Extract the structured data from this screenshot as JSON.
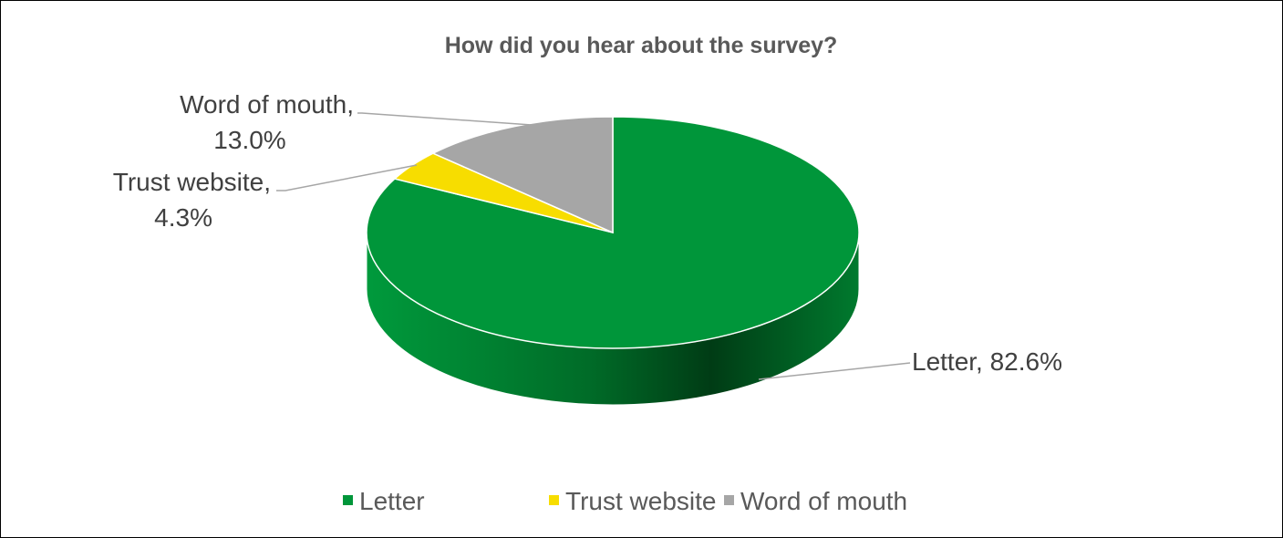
{
  "chart_data": {
    "type": "pie",
    "title": "How did you hear about the survey?",
    "categories": [
      "Letter",
      "Trust website",
      "Word of mouth"
    ],
    "values": [
      82.6,
      4.3,
      13.0
    ],
    "value_unit": "%",
    "data_labels": [
      {
        "category": "Letter",
        "value": "82.6%"
      },
      {
        "category": "Trust website",
        "value": "4.3%"
      },
      {
        "category": "Word of mouth",
        "value": "13.0%"
      }
    ],
    "colors": [
      "#00963a",
      "#f7dd00",
      "#a6a6a6"
    ],
    "side_color": "#007a2e",
    "style": "3d",
    "legend": {
      "position": "bottom",
      "entries": [
        "Letter",
        "Trust website",
        "Word of mouth"
      ]
    }
  }
}
